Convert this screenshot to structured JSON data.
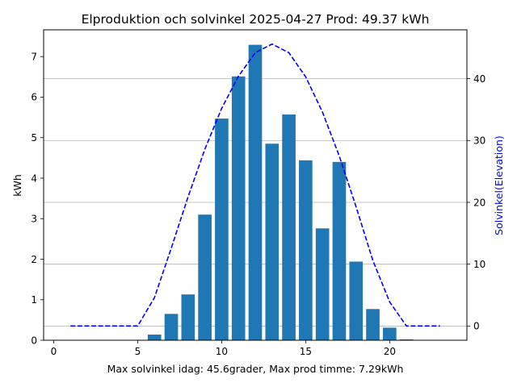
{
  "chart_data": {
    "type": "bar",
    "title": "Elproduktion och solvinkel 2025-04-27 Prod: 49.37 kWh",
    "xlabel": "Max solvinkel idag: 45.6grader, Max prod timme: 7.29kWh",
    "ylabel": "kWh",
    "y2label": "Solvinkel(Elevation)",
    "xlim": [
      -0.6,
      24.6
    ],
    "ylim": [
      0,
      7.66
    ],
    "y2lim": [
      -2.3,
      47.9
    ],
    "xticks": [
      0,
      5,
      10,
      15,
      20
    ],
    "yticks": [
      0,
      1,
      2,
      3,
      4,
      5,
      6,
      7
    ],
    "y2ticks": [
      0,
      10,
      20,
      30,
      40
    ],
    "grid": "horizontal lines on secondary axis",
    "bar_series": {
      "color": "#1f77b4",
      "hours": [
        6,
        7,
        8,
        9,
        10,
        11,
        12,
        13,
        14,
        15,
        16,
        17,
        18,
        19,
        20,
        21
      ],
      "values": [
        0.14,
        0.65,
        1.13,
        3.1,
        5.47,
        6.51,
        7.29,
        4.85,
        5.57,
        4.44,
        2.76,
        4.4,
        1.94,
        0.77,
        0.31,
        0.02
      ]
    },
    "line_series": {
      "color": "#0000ff",
      "style": "dashed",
      "axis": "secondary",
      "hours": [
        1,
        2,
        3,
        4,
        5,
        6,
        7,
        8,
        9,
        10,
        11,
        12,
        13,
        14,
        15,
        16,
        17,
        18,
        19,
        20,
        21,
        22,
        23
      ],
      "values": [
        0,
        0,
        0,
        0,
        0,
        4.6,
        12.6,
        20.9,
        28.6,
        35.2,
        40.4,
        44.2,
        45.6,
        44.2,
        40.3,
        34.6,
        27.5,
        19.3,
        10.6,
        3.9,
        0,
        0,
        0
      ]
    }
  }
}
